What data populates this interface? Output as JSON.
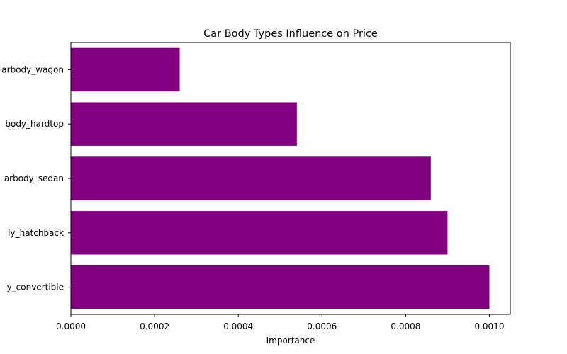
{
  "chart_data": {
    "type": "bar",
    "orientation": "horizontal",
    "title": "Car Body Types Influence on Price",
    "xlabel": "Importance",
    "ylabel": "",
    "categories": [
      "carbody_convertible",
      "carbody_hatchback",
      "carbody_sedan",
      "carbody_hardtop",
      "carbody_wagon"
    ],
    "tick_labels_visible": [
      "y_convertible",
      "ly_hatchback",
      "arbody_sedan",
      "body_hardtop",
      "arbody_wagon"
    ],
    "values": [
      0.001,
      0.0009,
      0.00086,
      0.00054,
      0.00026
    ],
    "xlim": [
      0,
      0.00105
    ],
    "xticks": [
      0.0,
      0.0002,
      0.0004,
      0.0006,
      0.0008,
      0.001
    ],
    "xtick_labels": [
      "0.0000",
      "0.0002",
      "0.0004",
      "0.0006",
      "0.0008",
      "0.0010"
    ],
    "bar_color": "#800080",
    "grid": false,
    "legend": "none"
  }
}
